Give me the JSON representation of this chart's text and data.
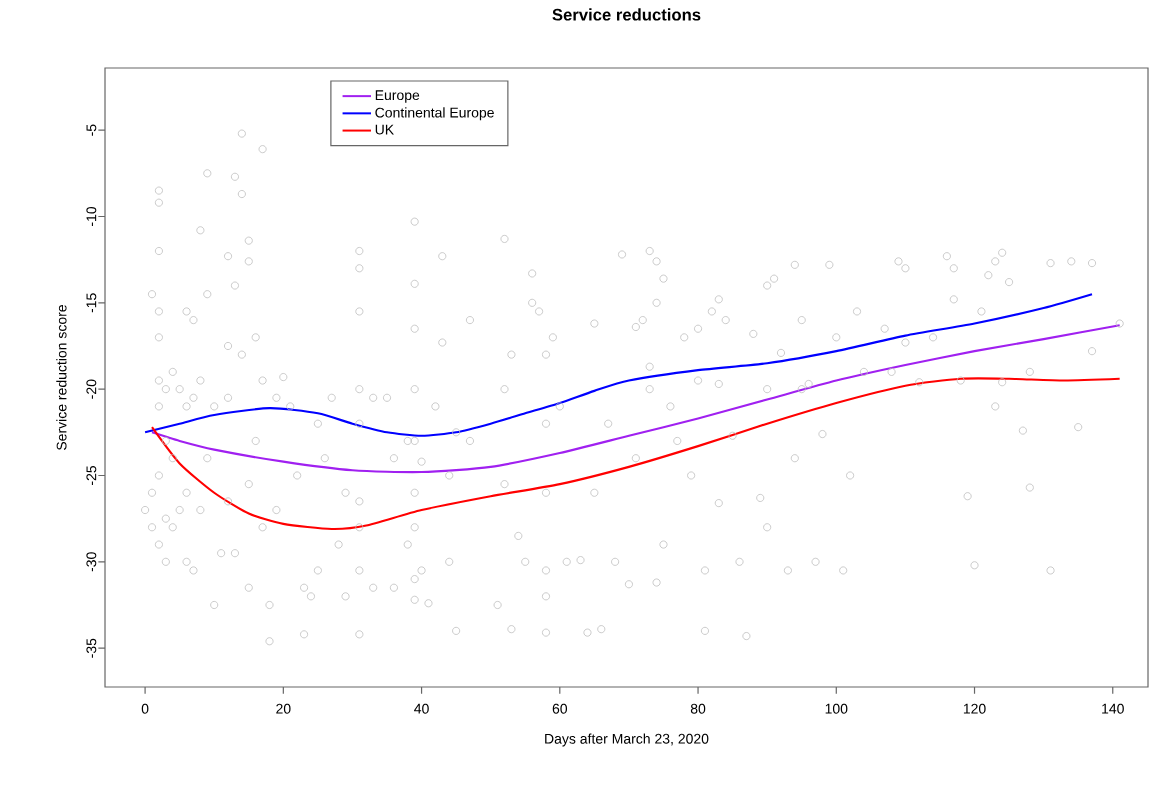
{
  "chart_data": {
    "type": "scatter",
    "title": "Service reductions",
    "xlabel": "Days after March 23, 2020",
    "ylabel": "Service reduction score",
    "xlim": [
      -5.8,
      145.1
    ],
    "ylim": [
      -37.25,
      -1.4
    ],
    "xticks": [
      0,
      20,
      40,
      60,
      80,
      100,
      120,
      140
    ],
    "yticks": [
      -35,
      -30,
      -25,
      -20,
      -15,
      -10,
      -5
    ],
    "grid": false,
    "legend": "top left",
    "series": [
      {
        "type": "scatter",
        "color": "#bebebe",
        "marker": "circle",
        "x": [
          0,
          1,
          1,
          1,
          2,
          2,
          2,
          2,
          2,
          2,
          2,
          2,
          2,
          3,
          3,
          3,
          3,
          4,
          4,
          4,
          5,
          5,
          6,
          6,
          6,
          6,
          7,
          7,
          7,
          8,
          8,
          8,
          9,
          9,
          9,
          10,
          10,
          11,
          12,
          12,
          12,
          12,
          13,
          13,
          13,
          14,
          14,
          14,
          15,
          15,
          15,
          15,
          16,
          16,
          17,
          17,
          17,
          18,
          18,
          19,
          19,
          20,
          21,
          22,
          23,
          23,
          24,
          25,
          25,
          26,
          27,
          28,
          29,
          29,
          31,
          31,
          31,
          31,
          31,
          31,
          31,
          31,
          31,
          33,
          33,
          35,
          36,
          36,
          38,
          38,
          39,
          39,
          39,
          39,
          39,
          39,
          39,
          39,
          39,
          40,
          40,
          41,
          42,
          43,
          43,
          44,
          44,
          45,
          45,
          47,
          47,
          51,
          52,
          52,
          52,
          53,
          53,
          54,
          55,
          56,
          56,
          57,
          58,
          58,
          58,
          58,
          58,
          58,
          59,
          60,
          61,
          63,
          64,
          65,
          65,
          66,
          67,
          68,
          69,
          70,
          71,
          71,
          72,
          73,
          73,
          73,
          74,
          74,
          74,
          75,
          75,
          76,
          77,
          78,
          79,
          80,
          80,
          81,
          81,
          82,
          83,
          83,
          83,
          84,
          85,
          86,
          87,
          88,
          89,
          90,
          90,
          90,
          91,
          92,
          93,
          94,
          94,
          95,
          95,
          96,
          97,
          98,
          99,
          100,
          101,
          102,
          103,
          104,
          107,
          108,
          109,
          110,
          110,
          112,
          114,
          116,
          117,
          117,
          118,
          119,
          120,
          121,
          122,
          123,
          123,
          124,
          124,
          125,
          127,
          128,
          128,
          131,
          131,
          134,
          135,
          137,
          137,
          141
        ],
        "values": [
          -27,
          -14.5,
          -26,
          -28,
          -8.5,
          -9.2,
          -12,
          -15.5,
          -17,
          -19.5,
          -21,
          -25,
          -29,
          -20,
          -23,
          -27.5,
          -30,
          -19,
          -24,
          -28,
          -20,
          -27,
          -15.5,
          -21,
          -26,
          -30,
          -16,
          -20.5,
          -30.5,
          -10.8,
          -19.5,
          -27,
          -7.5,
          -14.5,
          -24,
          -32.5,
          -21,
          -29.5,
          -12.3,
          -17.5,
          -20.5,
          -26.5,
          -7.7,
          -14,
          -29.5,
          -5.2,
          -8.7,
          -18,
          -11.4,
          -12.6,
          -25.5,
          -31.5,
          -17,
          -23,
          -6.1,
          -19.5,
          -28,
          -34.6,
          -32.5,
          -20.5,
          -27,
          -19.3,
          -21,
          -25,
          -34.2,
          -31.5,
          -32,
          -22,
          -30.5,
          -24,
          -20.5,
          -29,
          -26,
          -32,
          -12,
          -13,
          -15.5,
          -20,
          -22,
          -26.5,
          -28,
          -30.5,
          -34.2,
          -20.5,
          -31.5,
          -20.5,
          -24,
          -31.5,
          -23,
          -29,
          -10.3,
          -13.9,
          -16.5,
          -20,
          -23,
          -26,
          -28,
          -31,
          -32.2,
          -24.2,
          -30.5,
          -32.4,
          -21,
          -12.3,
          -17.3,
          -25,
          -30,
          -22.5,
          -34,
          -16,
          -23,
          -32.5,
          -11.3,
          -20,
          -25.5,
          -33.9,
          -18,
          -28.5,
          -30,
          -13.3,
          -15,
          -15.5,
          -18,
          -22,
          -26,
          -30.5,
          -32,
          -34.1,
          -17,
          -21,
          -30,
          -29.9,
          -34.1,
          -16.2,
          -26,
          -33.9,
          -22,
          -30,
          -12.2,
          -31.3,
          -16.4,
          -24,
          -16,
          -12,
          -18.7,
          -20,
          -12.6,
          -15,
          -31.2,
          -13.6,
          -29,
          -21,
          -23,
          -17,
          -25,
          -16.5,
          -19.5,
          -30.5,
          -34,
          -15.5,
          -14.8,
          -19.7,
          -26.6,
          -16,
          -22.7,
          -30,
          -34.3,
          -16.8,
          -26.3,
          -14,
          -20,
          -28,
          -13.6,
          -17.9,
          -30.5,
          -12.8,
          -24,
          -16,
          -20,
          -19.7,
          -30,
          -22.6,
          -12.8,
          -17,
          -30.5,
          -25,
          -15.5,
          -19,
          -16.5,
          -19,
          -12.6,
          -13,
          -17.3,
          -19.6,
          -17,
          -12.3,
          -13,
          -14.8,
          -19.5,
          -26.2,
          -30.2,
          -15.5,
          -13.4,
          -12.6,
          -21,
          -12.1,
          -19.6,
          -13.8,
          -22.4,
          -25.7,
          -19,
          -12.7,
          -30.5,
          -12.6,
          -22.2,
          -12.7,
          -17.8,
          -16.2
        ]
      },
      {
        "type": "line",
        "name": "Europe",
        "color": "#a020f0",
        "x": [
          1,
          5,
          10,
          20,
          30,
          40,
          50,
          60,
          70,
          80,
          90,
          100,
          110,
          120,
          130,
          141
        ],
        "values": [
          -22.5,
          -23,
          -23.5,
          -24.2,
          -24.7,
          -24.8,
          -24.5,
          -23.7,
          -22.7,
          -21.7,
          -20.6,
          -19.5,
          -18.6,
          -17.8,
          -17.1,
          -16.3
        ]
      },
      {
        "type": "line",
        "name": "Continental Europe",
        "color": "#0000ff",
        "x": [
          0,
          5,
          10,
          18,
          25,
          30,
          35,
          40,
          45,
          50,
          55,
          60,
          65,
          70,
          80,
          90,
          100,
          110,
          120,
          130,
          137
        ],
        "values": [
          -22.5,
          -22,
          -21.5,
          -21.1,
          -21.4,
          -22,
          -22.5,
          -22.7,
          -22.5,
          -22,
          -21.4,
          -20.8,
          -20.1,
          -19.5,
          -18.9,
          -18.5,
          -17.8,
          -16.9,
          -16.2,
          -15.3,
          -14.5
        ]
      },
      {
        "type": "line",
        "name": "UK",
        "color": "#ff0000",
        "x": [
          1,
          5,
          10,
          15,
          20,
          27,
          32,
          40,
          50,
          60,
          70,
          80,
          90,
          100,
          110,
          118,
          125,
          133,
          141
        ],
        "values": [
          -22.2,
          -24.3,
          -26,
          -27.2,
          -27.8,
          -28.1,
          -27.9,
          -27,
          -26.2,
          -25.5,
          -24.5,
          -23.3,
          -22,
          -20.8,
          -19.8,
          -19.4,
          -19.4,
          -19.5,
          -19.4
        ]
      }
    ]
  }
}
